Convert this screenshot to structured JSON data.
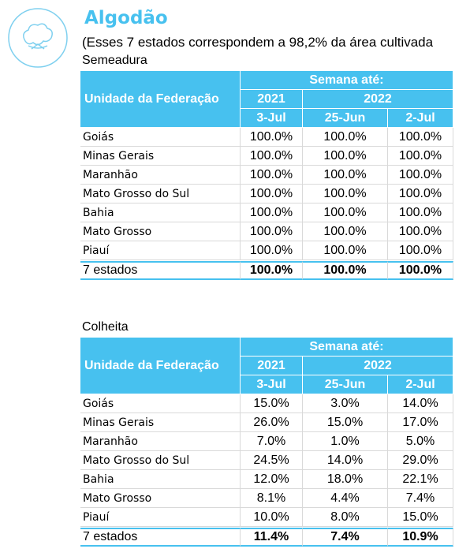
{
  "header": {
    "title": "Algodão",
    "subtitle": "(Esses 7 estados correspondem a 98,2% da área cultivada"
  },
  "tables": [
    {
      "caption": "Semeadura",
      "row_label": "Unidade da Federação",
      "group": "Semana até:",
      "years": [
        "2021",
        "2022"
      ],
      "dates": [
        "3-Jul",
        "25-Jun",
        "2-Jul"
      ],
      "rows": [
        [
          "Goiás",
          "100.0%",
          "100.0%",
          "100.0%"
        ],
        [
          "Minas Gerais",
          "100.0%",
          "100.0%",
          "100.0%"
        ],
        [
          "Maranhão",
          "100.0%",
          "100.0%",
          "100.0%"
        ],
        [
          "Mato Grosso do Sul",
          "100.0%",
          "100.0%",
          "100.0%"
        ],
        [
          "Bahia",
          "100.0%",
          "100.0%",
          "100.0%"
        ],
        [
          "Mato Grosso",
          "100.0%",
          "100.0%",
          "100.0%"
        ],
        [
          "Piauí",
          "100.0%",
          "100.0%",
          "100.0%"
        ]
      ],
      "total": [
        "7 estados",
        "100.0%",
        "100.0%",
        "100.0%"
      ]
    },
    {
      "caption": "Colheita",
      "row_label": "Unidade da Federação",
      "group": "Semana até:",
      "years": [
        "2021",
        "2022"
      ],
      "dates": [
        "3-Jul",
        "25-Jun",
        "2-Jul"
      ],
      "rows": [
        [
          "Goiás",
          "15.0%",
          "3.0%",
          "14.0%"
        ],
        [
          "Minas Gerais",
          "26.0%",
          "15.0%",
          "17.0%"
        ],
        [
          "Maranhão",
          "7.0%",
          "1.0%",
          "5.0%"
        ],
        [
          "Mato Grosso do Sul",
          "24.5%",
          "14.0%",
          "29.0%"
        ],
        [
          "Bahia",
          "12.0%",
          "18.0%",
          "22.1%"
        ],
        [
          "Mato Grosso",
          "8.1%",
          "4.4%",
          "7.4%"
        ],
        [
          "Piauí",
          "10.0%",
          "8.0%",
          "15.0%"
        ]
      ],
      "total": [
        "7 estados",
        "11.4%",
        "7.4%",
        "10.9%"
      ]
    }
  ]
}
